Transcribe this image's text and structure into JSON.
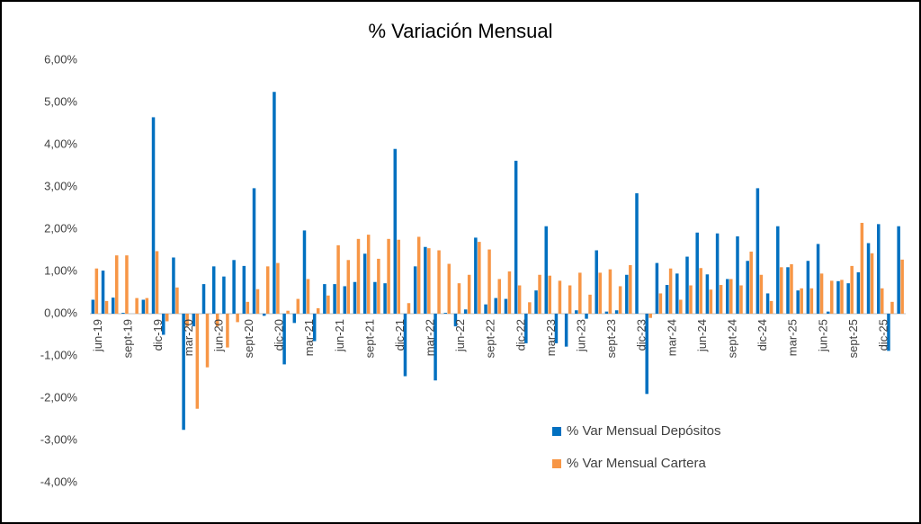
{
  "chart_data": {
    "type": "bar",
    "title": "% Variación Mensual",
    "categories": [
      "jun-19",
      null,
      null,
      "sept-19",
      null,
      null,
      "dic-19",
      null,
      null,
      "mar-20",
      null,
      null,
      "jun-20",
      null,
      null,
      "sept-20",
      null,
      null,
      "dic-20",
      null,
      null,
      "mar-21",
      null,
      null,
      "jun-21",
      null,
      null,
      "sept-21",
      null,
      null,
      "dic-21",
      null,
      null,
      "mar-22",
      null,
      null,
      "jun-22",
      null,
      null,
      "sept-22",
      null,
      null,
      "dic-22",
      null,
      null,
      "mar-23",
      null,
      null,
      "jun-23",
      null,
      null,
      "sept-23",
      null,
      null,
      "dic-23",
      null,
      null,
      "mar-24",
      null,
      null,
      "jun-24",
      null,
      null,
      "sept-24",
      null,
      null,
      "dic-24",
      null,
      null,
      "mar-25",
      null,
      null,
      "jun-25",
      null,
      null,
      "sept-25",
      null,
      null,
      "dic-25",
      null,
      null
    ],
    "series": [
      {
        "name": "% Var Mensual Depósitos",
        "color": "#0070c0",
        "values": [
          0.33,
          1.02,
          0.38,
          0.02,
          0.0,
          0.33,
          4.65,
          -0.5,
          1.33,
          -2.75,
          -0.3,
          0.7,
          1.12,
          0.88,
          1.27,
          1.13,
          2.97,
          -0.05,
          5.25,
          -1.2,
          -0.22,
          1.97,
          -0.65,
          0.7,
          0.7,
          0.65,
          0.75,
          1.42,
          0.75,
          0.72,
          3.9,
          -1.48,
          1.12,
          1.58,
          -1.58,
          0.02,
          -0.3,
          0.1,
          1.8,
          0.22,
          0.37,
          0.35,
          3.62,
          -0.7,
          0.55,
          2.07,
          -0.7,
          -0.78,
          0.08,
          -0.12,
          1.5,
          0.05,
          0.08,
          0.92,
          2.85,
          -1.9,
          1.2,
          0.68,
          0.95,
          1.35,
          1.92,
          0.93,
          1.9,
          0.82,
          1.83,
          1.25,
          2.97,
          0.48,
          2.07,
          1.1,
          0.55,
          1.25,
          1.65,
          0.05,
          0.77,
          0.72,
          0.98,
          1.67,
          2.12,
          -0.88,
          2.07
        ]
      },
      {
        "name": "% Var Mensual Cartera",
        "color": "#f79646",
        "values": [
          1.07,
          0.3,
          1.38,
          1.38,
          0.37,
          0.37,
          1.48,
          -0.18,
          0.62,
          -0.3,
          -2.25,
          -1.27,
          -0.3,
          -0.8,
          -0.2,
          0.28,
          0.58,
          1.12,
          1.2,
          0.07,
          0.35,
          0.82,
          0.13,
          0.43,
          1.62,
          1.27,
          1.77,
          1.87,
          1.3,
          1.77,
          1.75,
          0.25,
          1.82,
          1.55,
          1.5,
          1.18,
          0.72,
          0.92,
          1.7,
          1.52,
          0.82,
          1.0,
          0.67,
          0.27,
          0.92,
          0.9,
          0.78,
          0.67,
          0.97,
          0.45,
          0.97,
          1.05,
          0.65,
          1.15,
          0.0,
          -0.1,
          0.48,
          1.07,
          0.33,
          0.67,
          1.08,
          0.57,
          0.68,
          0.82,
          0.67,
          1.47,
          0.92,
          0.3,
          1.1,
          1.17,
          0.6,
          0.6,
          0.95,
          0.78,
          0.8,
          1.13,
          2.15,
          1.43,
          0.6,
          0.28,
          1.28
        ]
      }
    ],
    "ylim": [
      -4,
      6
    ],
    "yticks": [
      {
        "value": -4,
        "label": "-4,00%"
      },
      {
        "value": -3,
        "label": "-3,00%"
      },
      {
        "value": -2,
        "label": "-2,00%"
      },
      {
        "value": -1,
        "label": "-1,00%"
      },
      {
        "value": 0,
        "label": "0,00%"
      },
      {
        "value": 1,
        "label": "1,00%"
      },
      {
        "value": 2,
        "label": "2,00%"
      },
      {
        "value": 3,
        "label": "3,00%"
      },
      {
        "value": 4,
        "label": "4,00%"
      },
      {
        "value": 5,
        "label": "5,00%"
      },
      {
        "value": 6,
        "label": "6,00%"
      }
    ],
    "grid": false,
    "legend": "lower-right"
  }
}
